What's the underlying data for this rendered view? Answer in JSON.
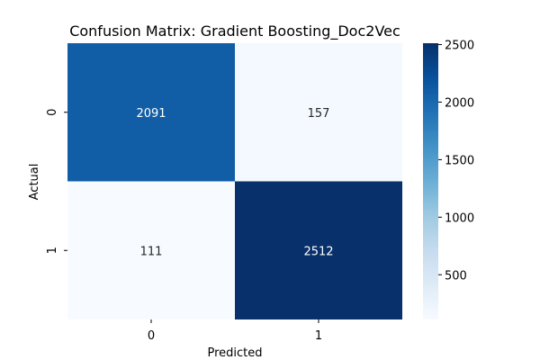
{
  "chart_data": {
    "type": "heatmap",
    "title": "Confusion Matrix: Gradient Boosting_Doc2Vec",
    "xlabel": "Predicted",
    "ylabel": "Actual",
    "x_categories": [
      "0",
      "1"
    ],
    "y_categories": [
      "0",
      "1"
    ],
    "values": [
      [
        2091,
        157
      ],
      [
        111,
        2512
      ]
    ],
    "colormap": "Blues",
    "color_range": [
      111,
      2512
    ],
    "colorbar_ticks": [
      500,
      1000,
      1500,
      2000,
      2500
    ],
    "grid": false,
    "annotations": true
  }
}
